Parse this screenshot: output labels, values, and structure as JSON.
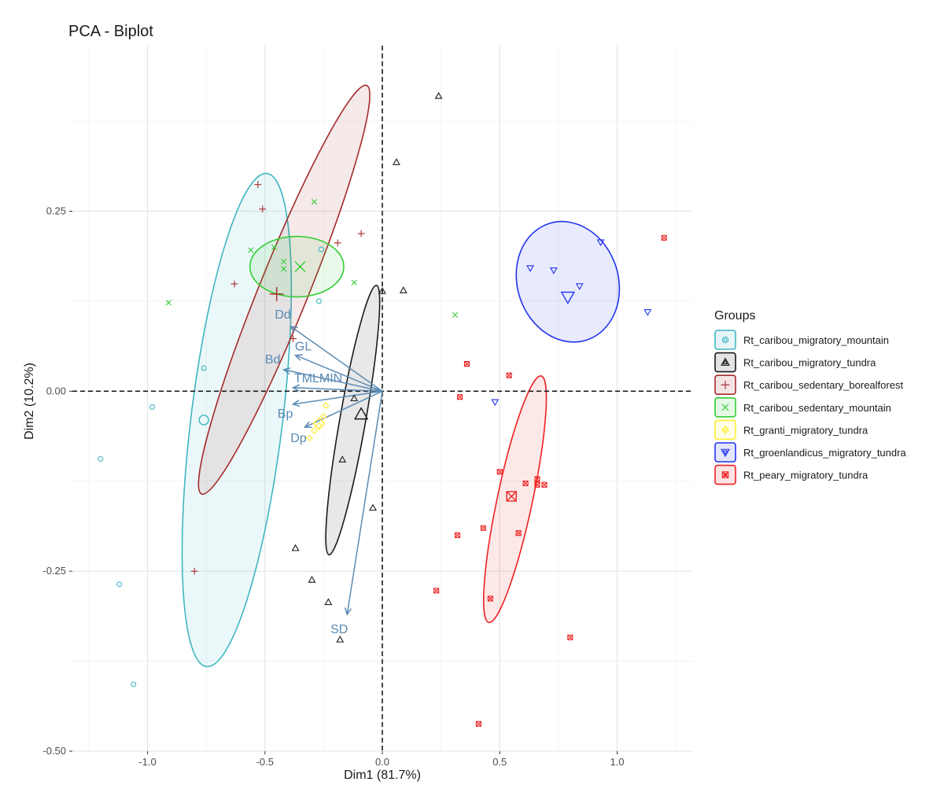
{
  "chart_data": {
    "type": "scatter",
    "title": "PCA - Biplot",
    "xlabel": "Dim1 (81.7%)",
    "ylabel": "Dim2 (10.2%)",
    "xlim": [
      -1.32,
      1.32
    ],
    "ylim": [
      -0.5,
      0.48
    ],
    "xticks": [
      -1.0,
      -0.5,
      0.0,
      0.5,
      1.0
    ],
    "xtick_labels": [
      "-1.0",
      "-0.5",
      "0.0",
      "0.5",
      "1.0"
    ],
    "yticks": [
      -0.5,
      -0.25,
      0.0,
      0.25
    ],
    "ytick_labels": [
      "-0.50",
      "-0.25",
      "0.00",
      "0.25"
    ],
    "grid": true,
    "legend": {
      "title": "Groups",
      "position": "right"
    },
    "groups": [
      {
        "name": "Rt_caribou_migratory_mountain",
        "color": "#3fb6c1",
        "shape": "circle",
        "points": [
          [
            -1.2,
            -0.094
          ],
          [
            -1.12,
            -0.268
          ],
          [
            -1.06,
            -0.407
          ],
          [
            -0.98,
            -0.022
          ],
          [
            -0.76,
            0.032
          ],
          [
            -0.26,
            0.197
          ],
          [
            -0.27,
            0.125
          ]
        ],
        "centroid": [
          -0.76,
          -0.04
        ],
        "ellipse": {
          "cx": -0.62,
          "cy": -0.04,
          "rx": 0.195,
          "ry": 0.345,
          "angle": 7
        }
      },
      {
        "name": "Rt_caribou_migratory_tundra",
        "color": "#1a1a1a",
        "shape": "triangle",
        "points": [
          [
            0.24,
            0.41
          ],
          [
            0.06,
            0.318
          ],
          [
            0.0,
            0.139
          ],
          [
            0.09,
            0.14
          ],
          [
            -0.12,
            -0.01
          ],
          [
            -0.17,
            -0.095
          ],
          [
            -0.04,
            -0.162
          ],
          [
            -0.37,
            -0.218
          ],
          [
            -0.3,
            -0.262
          ],
          [
            -0.23,
            -0.293
          ],
          [
            -0.18,
            -0.345
          ]
        ],
        "centroid": [
          -0.09,
          -0.032
        ],
        "ellipse": {
          "cx": -0.126,
          "cy": -0.04,
          "rx": 0.055,
          "ry": 0.19,
          "angle": 10
        }
      },
      {
        "name": "Rt_caribou_sedentary_borealforest",
        "color": "#a52a2a",
        "shape": "plus",
        "points": [
          [
            -0.53,
            0.287
          ],
          [
            -0.51,
            0.253
          ],
          [
            -0.09,
            0.219
          ],
          [
            -0.19,
            0.206
          ],
          [
            -0.63,
            0.149
          ],
          [
            -0.45,
            0.135
          ],
          [
            -0.38,
            0.073
          ],
          [
            -0.8,
            -0.25
          ]
        ],
        "centroid": [
          -0.45,
          0.135
        ],
        "ellipse": {
          "cx": -0.418,
          "cy": 0.141,
          "rx": 0.105,
          "ry": 0.306,
          "angle": 22
        }
      },
      {
        "name": "Rt_caribou_sedentary_mountain",
        "color": "#33cc33",
        "shape": "cross",
        "points": [
          [
            -0.29,
            0.263
          ],
          [
            -0.46,
            0.2
          ],
          [
            -0.42,
            0.18
          ],
          [
            -0.42,
            0.17
          ],
          [
            -0.56,
            0.196
          ],
          [
            -0.12,
            0.151
          ],
          [
            -0.91,
            0.123
          ],
          [
            0.31,
            0.106
          ]
        ],
        "centroid": [
          -0.35,
          0.173
        ],
        "ellipse": {
          "cx": -0.364,
          "cy": 0.173,
          "rx": 0.2,
          "ry": 0.042,
          "angle": 0
        }
      },
      {
        "name": "Rt_granti_migratory_tundra",
        "color": "#ffee33",
        "shape": "diamond",
        "points": [
          [
            -0.24,
            -0.02
          ],
          [
            -0.25,
            -0.035
          ],
          [
            -0.27,
            -0.048
          ],
          [
            -0.29,
            -0.055
          ],
          [
            -0.31,
            -0.065
          ]
        ],
        "centroid": [
          -0.27,
          -0.045
        ],
        "ellipse": null
      },
      {
        "name": "Rt_groenlandicus_migratory_tundra",
        "color": "#2233ee",
        "shape": "triangle-down",
        "points": [
          [
            0.93,
            0.207
          ],
          [
            0.63,
            0.171
          ],
          [
            0.73,
            0.168
          ],
          [
            0.84,
            0.146
          ],
          [
            1.13,
            0.11
          ],
          [
            0.48,
            -0.015
          ]
        ],
        "centroid": [
          0.79,
          0.131
        ],
        "ellipse": {
          "cx": 0.79,
          "cy": 0.152,
          "rx": 0.215,
          "ry": 0.085,
          "angle": -18
        }
      },
      {
        "name": "Rt_peary_migratory_tundra",
        "color": "#ee2222",
        "shape": "square-x",
        "points": [
          [
            1.2,
            0.213
          ],
          [
            0.36,
            0.038
          ],
          [
            0.54,
            0.022
          ],
          [
            0.33,
            -0.008
          ],
          [
            0.5,
            -0.112
          ],
          [
            0.61,
            -0.128
          ],
          [
            0.66,
            -0.13
          ],
          [
            0.69,
            -0.13
          ],
          [
            0.66,
            -0.122
          ],
          [
            0.43,
            -0.19
          ],
          [
            0.32,
            -0.2
          ],
          [
            0.58,
            -0.197
          ],
          [
            0.23,
            -0.277
          ],
          [
            0.46,
            -0.288
          ],
          [
            0.8,
            -0.342
          ],
          [
            0.41,
            -0.462
          ]
        ],
        "centroid": [
          0.55,
          -0.146
        ],
        "ellipse": {
          "cx": 0.565,
          "cy": -0.15,
          "rx": 0.075,
          "ry": 0.175,
          "angle": 12
        }
      }
    ],
    "variables": [
      {
        "name": "Dd",
        "x": -0.39,
        "y": 0.09
      },
      {
        "name": "GL",
        "x": -0.37,
        "y": 0.05
      },
      {
        "name": "Bd",
        "x": -0.42,
        "y": 0.03
      },
      {
        "name": "TMLMIN",
        "x": -0.38,
        "y": 0.005
      },
      {
        "name": "Bp",
        "x": -0.38,
        "y": -0.018
      },
      {
        "name": "Dp",
        "x": -0.33,
        "y": -0.05
      },
      {
        "name": "SD",
        "x": -0.15,
        "y": -0.31
      }
    ],
    "variable_color": "#5b8bb4"
  }
}
